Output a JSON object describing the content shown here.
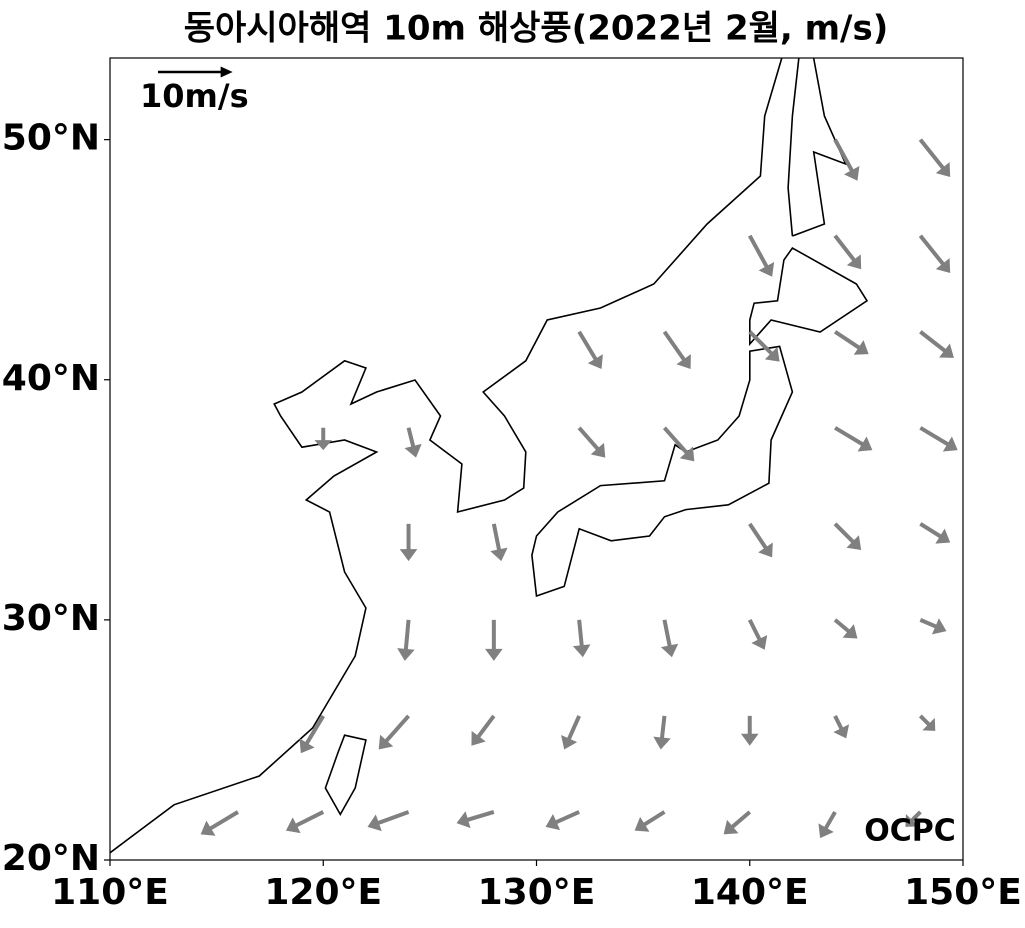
{
  "chart_data": {
    "type": "quiver",
    "title": "동아시아해역 10m 해상풍(2022년 2월, m/s)",
    "xlim": [
      110,
      150
    ],
    "ylim": [
      20,
      53.4
    ],
    "xticks": [
      {
        "value": 110,
        "label": "110°E"
      },
      {
        "value": 120,
        "label": "120°E"
      },
      {
        "value": 130,
        "label": "130°E"
      },
      {
        "value": 140,
        "label": "140°E"
      },
      {
        "value": 150,
        "label": "150°E"
      }
    ],
    "yticks": [
      {
        "value": 20,
        "label": "20°N"
      },
      {
        "value": 30,
        "label": "30°N"
      },
      {
        "value": 40,
        "label": "40°N"
      },
      {
        "value": 50,
        "label": "50°N"
      }
    ],
    "color": "#808080",
    "ref_value": 10,
    "ref_label": "10m/s",
    "watermark": "OCPC",
    "lon": [
      116,
      120,
      124,
      128,
      132,
      136,
      140,
      144,
      148,
      120,
      124,
      128,
      132,
      136,
      140,
      144,
      148,
      124,
      128,
      132,
      136,
      140,
      144,
      148,
      124,
      128,
      140,
      144,
      148,
      120,
      124,
      132,
      136,
      144,
      148,
      132,
      136,
      140,
      144,
      148,
      140,
      144,
      148,
      144,
      148
    ],
    "lat": [
      22,
      22,
      22,
      22,
      22,
      22,
      22,
      22,
      22,
      26,
      26,
      26,
      26,
      26,
      26,
      26,
      26,
      30,
      30,
      30,
      30,
      30,
      30,
      30,
      34,
      34,
      34,
      34,
      34,
      38,
      38,
      38,
      38,
      38,
      38,
      42,
      42,
      42,
      42,
      42,
      46,
      46,
      46,
      50,
      50
    ],
    "u": [
      -5,
      -5,
      -5.5,
      -5,
      -4.5,
      -4,
      -3.5,
      -2,
      -2,
      -3,
      -4,
      -3,
      -2,
      -0.5,
      0,
      1.5,
      2,
      -0.5,
      0,
      0.5,
      1,
      2,
      3,
      3.5,
      0,
      1,
      3,
      3.5,
      4,
      0,
      1,
      3.5,
      4,
      5,
      5,
      3,
      3.5,
      4,
      4.5,
      4.5,
      3,
      3.5,
      4,
      3,
      4
    ],
    "v": [
      -3,
      -2.5,
      -2,
      -1.5,
      -2,
      -2.5,
      -3,
      -3.5,
      -2,
      -5,
      -4.5,
      -4,
      -4.5,
      -4.5,
      -4,
      -3,
      -2,
      -5.5,
      -5.5,
      -5,
      -5,
      -4,
      -2.5,
      -1.5,
      -5,
      -5,
      -4.5,
      -3.5,
      -2.5,
      -3,
      -4,
      -4,
      -4.5,
      -3,
      -3,
      -5,
      -5,
      -4,
      -3,
      -3.5,
      -5.5,
      -4.5,
      -5,
      -5.5,
      -5
    ]
  }
}
